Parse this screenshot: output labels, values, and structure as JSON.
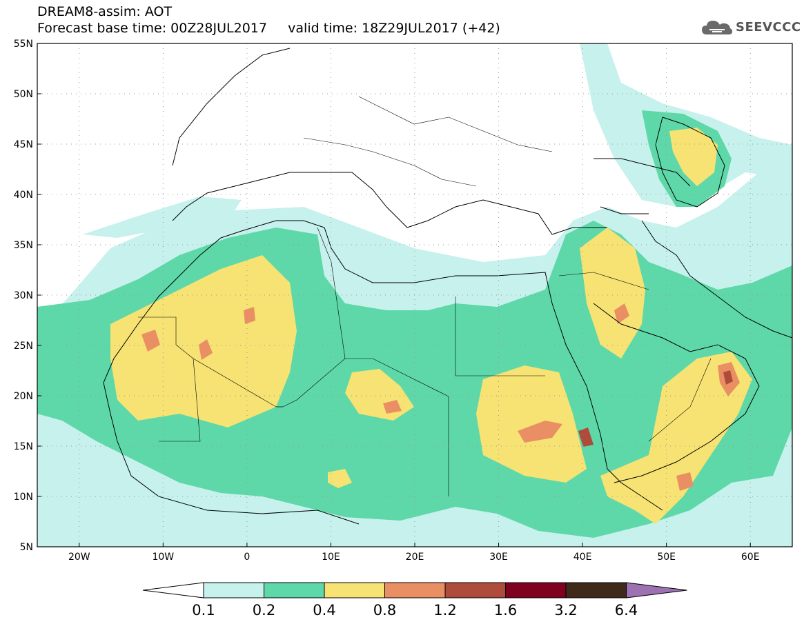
{
  "title": {
    "line1": "DREAM8-assim: AOT",
    "line2": "Forecast base time: 00Z28JUL2017     valid time: 18Z29JUL2017 (+42)"
  },
  "logo": {
    "text": "SEEVCCC",
    "icon": "cloud-icon"
  },
  "map": {
    "lon_labels": [
      "20W",
      "10W",
      "0",
      "10E",
      "20E",
      "30E",
      "40E",
      "50E",
      "60E"
    ],
    "lat_labels": [
      "55N",
      "50N",
      "45N",
      "40N",
      "35N",
      "30N",
      "25N",
      "20N",
      "15N",
      "10N",
      "5N"
    ],
    "lon_range": [
      -25,
      65
    ],
    "lat_range": [
      5,
      55
    ],
    "grid": "dotted"
  },
  "legend": {
    "labels": [
      "0.1",
      "0.2",
      "0.4",
      "0.8",
      "1.2",
      "1.6",
      "3.2",
      "6.4"
    ],
    "colors": [
      "#ffffff",
      "#c6f1ec",
      "#5ed8a8",
      "#f6e373",
      "#ea8f64",
      "#ae4b3a",
      "#800020",
      "#3f2a1a",
      "#9d72b2"
    ]
  }
}
